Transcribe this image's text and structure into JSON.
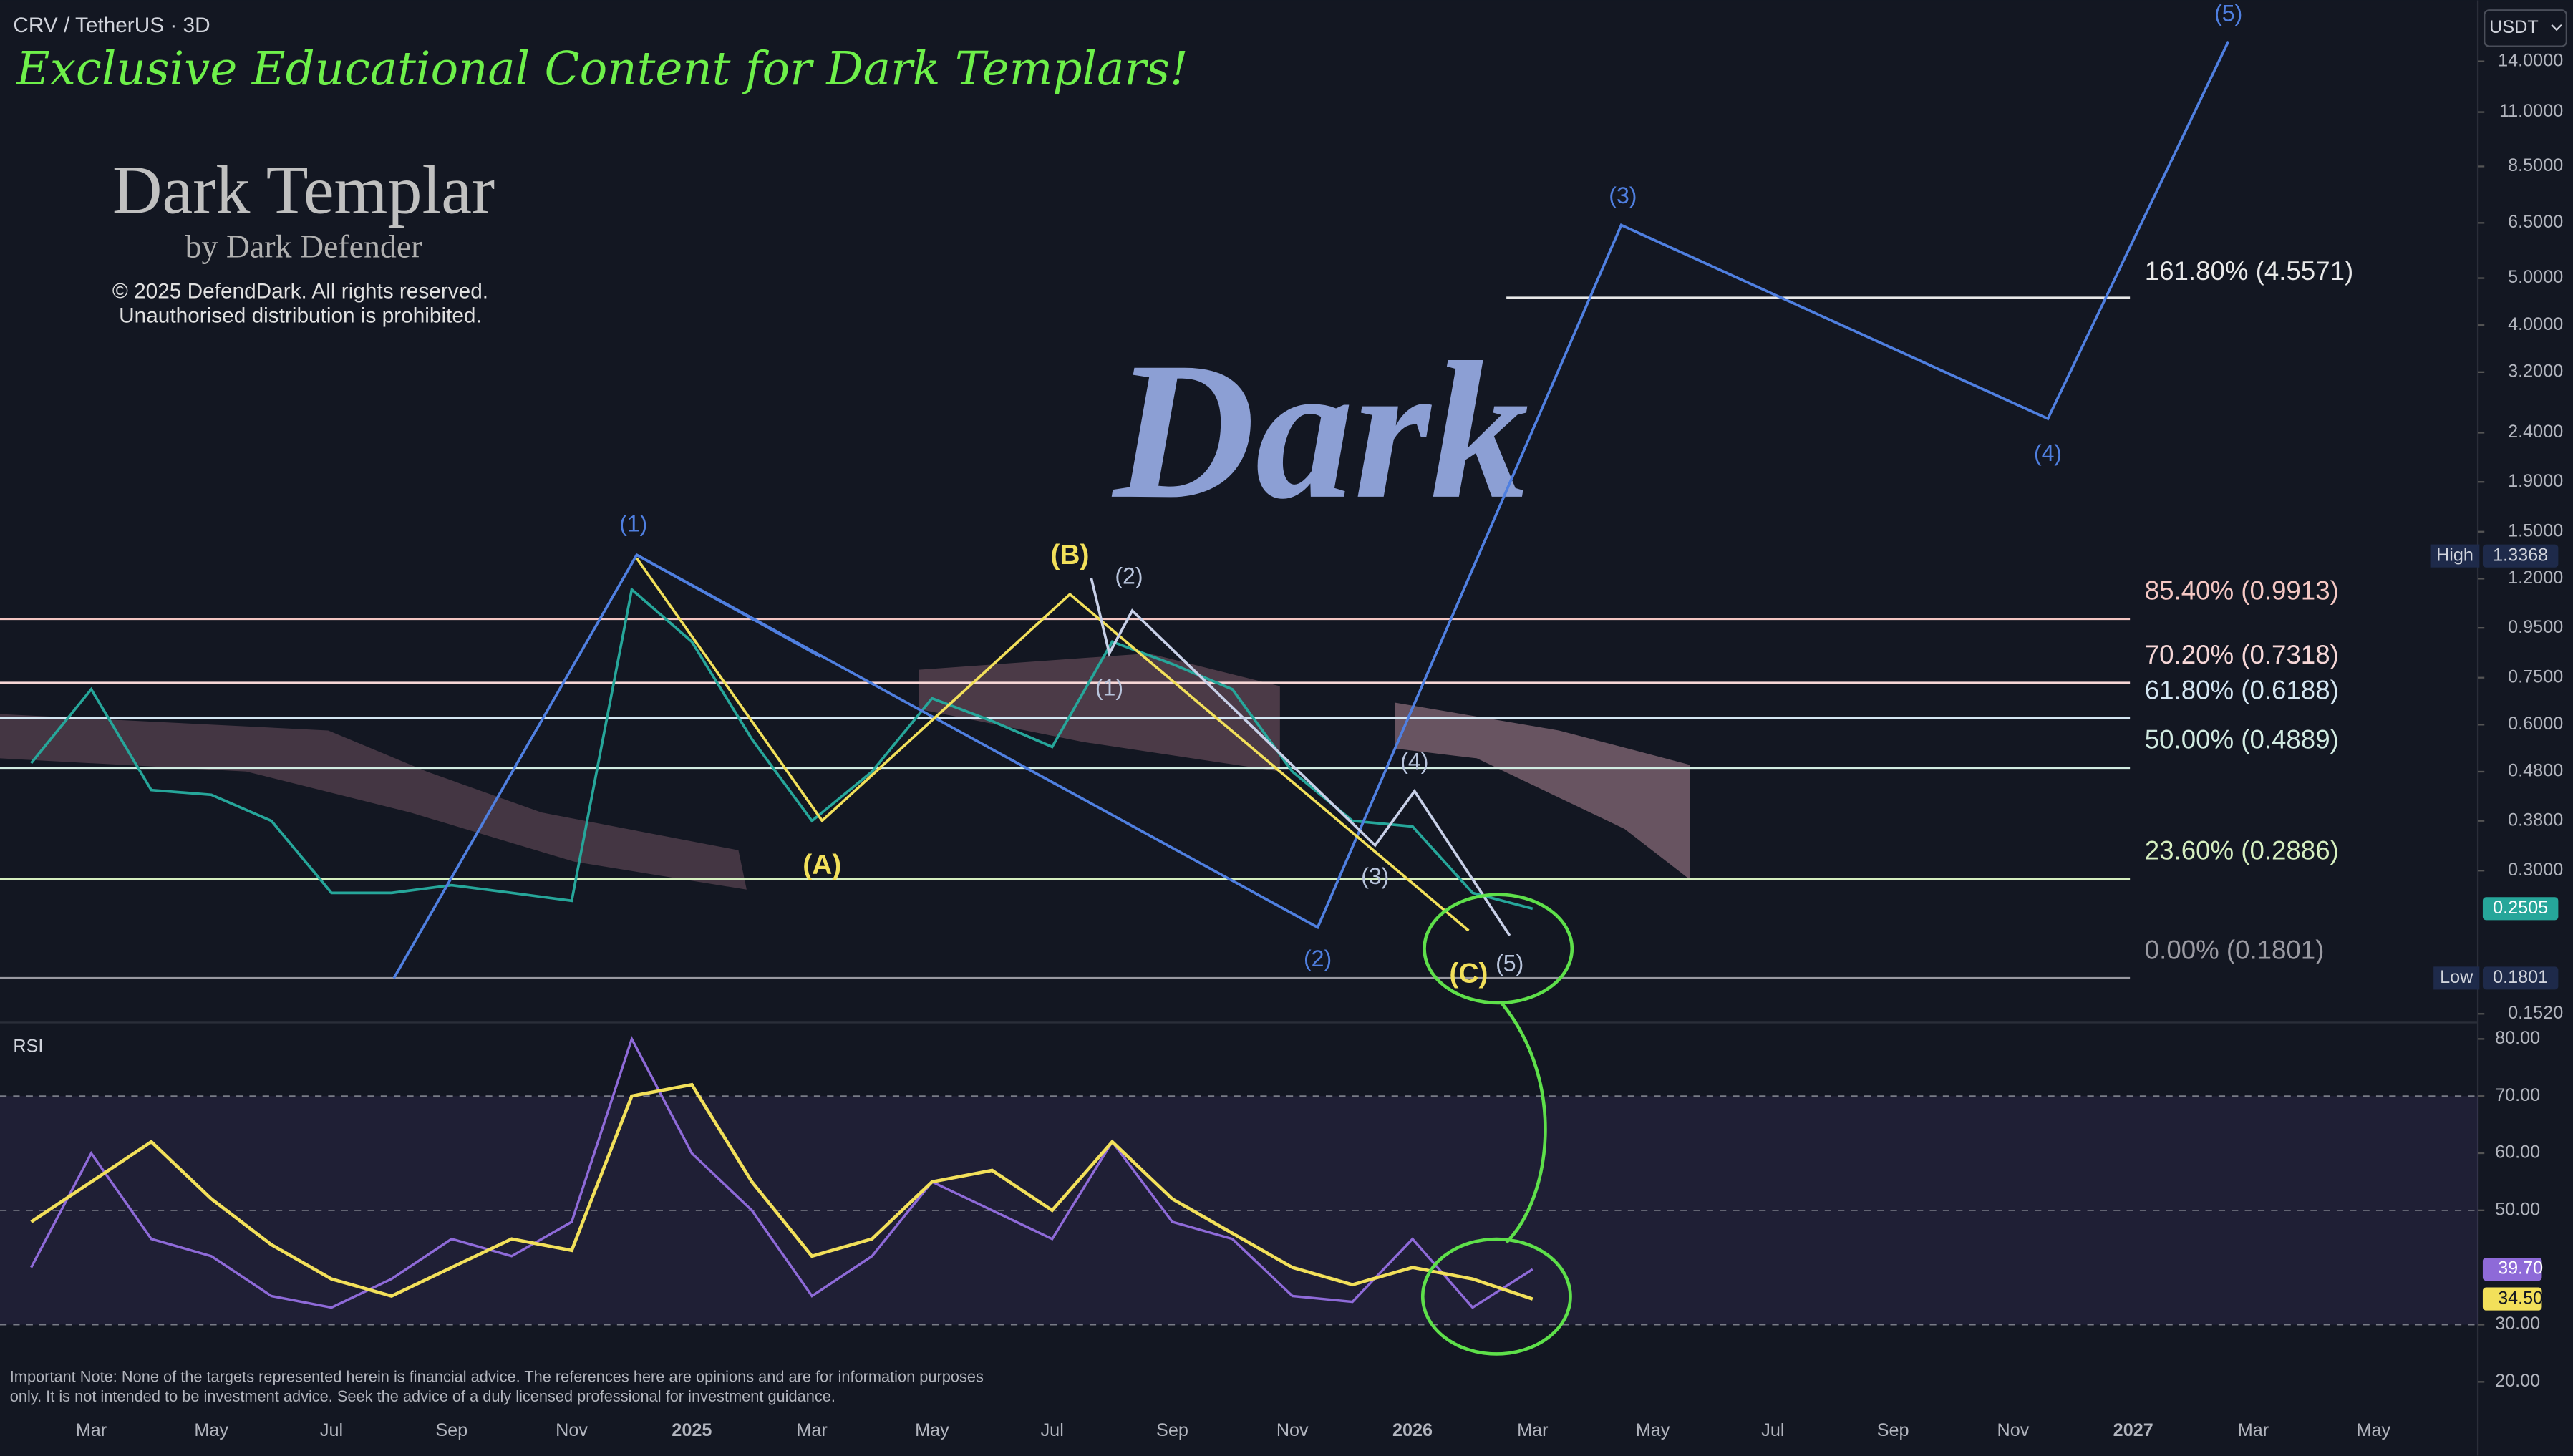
{
  "header": {
    "symbol": "CRV / TetherUS · 3D",
    "currency": "USDT"
  },
  "branding": {
    "banner": "Exclusive Educational Content for Dark Templars!",
    "logo": "Dark Templar",
    "byline": "by Dark Defender",
    "copyright": "© 2025 DefendDark. All rights reserved.",
    "notice": "Unauthorised distribution is prohibited.",
    "watermark": "Dark"
  },
  "note": "Important Note: None of the targets represented herein is financial advice. The references here are opinions and are for information purposes only. It is not intended to be investment advice. Seek the advice of a duly licensed professional for investment guidance.",
  "chart_data": [
    {
      "type": "line",
      "log_scale": true,
      "color": "#26a69a",
      "categories": [
        null,
        "Mar",
        null,
        "May",
        null,
        "Jul",
        null,
        "Sep",
        null,
        "Nov",
        null,
        "2025",
        null,
        "Mar",
        null,
        "May",
        null,
        "Jul",
        null,
        "Sep",
        null,
        "Nov",
        null,
        "2026",
        null,
        "Mar",
        null,
        "May",
        null,
        "Jul",
        null,
        "Sep",
        null,
        "Nov",
        null,
        "2027",
        null,
        "Mar",
        null,
        "May"
      ],
      "values": [
        0.5,
        0.71,
        0.44,
        0.43,
        0.38,
        0.27,
        0.27,
        0.28,
        0.27,
        0.26,
        1.14,
        0.89,
        0.56,
        0.38,
        0.48,
        0.68,
        0.61,
        0.54,
        0.89,
        0.8,
        0.71,
        0.48,
        0.38,
        0.37,
        0.27,
        0.2505,
        null,
        null,
        null,
        null,
        null,
        null,
        null,
        null,
        null,
        null,
        null,
        null,
        null,
        null
      ],
      "ylim": [
        0.147,
        18.7
      ],
      "yticks": [
        {
          "value": 14,
          "label": "14.0000"
        },
        {
          "value": 11,
          "label": "11.0000"
        },
        {
          "value": 8.5,
          "label": "8.5000"
        },
        {
          "value": 6.5,
          "label": "6.5000"
        },
        {
          "value": 5,
          "label": "5.0000"
        },
        {
          "value": 4,
          "label": "4.0000"
        },
        {
          "value": 3.2,
          "label": "3.2000"
        },
        {
          "value": 2.4,
          "label": "2.4000"
        },
        {
          "value": 1.9,
          "label": "1.9000"
        },
        {
          "value": 1.5,
          "label": "1.5000"
        },
        {
          "value": 1.2,
          "label": "1.2000"
        },
        {
          "value": 0.95,
          "label": "0.9500"
        },
        {
          "value": 0.75,
          "label": "0.7500"
        },
        {
          "value": 0.6,
          "label": "0.6000"
        },
        {
          "value": 0.48,
          "label": "0.4800"
        },
        {
          "value": 0.38,
          "label": "0.3800"
        },
        {
          "value": 0.3,
          "label": "0.3000"
        },
        {
          "value": 0.152,
          "label": "0.1520"
        }
      ],
      "levels": [
        {
          "value": 4.5571,
          "label": "161.80% (4.5571)",
          "color": "#e8e8e8"
        },
        {
          "value": 0.9913,
          "label": "85.40% (0.9913)",
          "color": "#f4c7c3"
        },
        {
          "value": 0.7318,
          "label": "70.20% (0.7318)",
          "color": "#f6d6d6"
        },
        {
          "value": 0.6188,
          "label": "61.80% (0.6188)",
          "color": "#d4e6f2"
        },
        {
          "value": 0.4889,
          "label": "50.00% (0.4889)",
          "color": "#d2ece2"
        },
        {
          "value": 0.2886,
          "label": "23.60% (0.2886)",
          "color": "#d6efc0"
        },
        {
          "value": 0.1801,
          "label": "0.00% (0.1801)",
          "color": "#9a9aa2"
        }
      ],
      "high": {
        "label": "High",
        "value": 1.3368
      },
      "low": {
        "label": "Low",
        "value": 0.1801
      },
      "annotations": [
        {
          "text": "(1)",
          "color": "#4f7fe0"
        },
        {
          "text": "(2)",
          "color": "#4f7fe0"
        },
        {
          "text": "(3)",
          "color": "#4f7fe0"
        },
        {
          "text": "(4)",
          "color": "#4f7fe0"
        },
        {
          "text": "(5)",
          "color": "#4f7fe0"
        },
        {
          "text": "(A)",
          "color": "#f2e05a"
        },
        {
          "text": "(B)",
          "color": "#f2e05a"
        },
        {
          "text": "(C)",
          "color": "#f2e05a"
        },
        {
          "text": "(1)",
          "color": "#b8c4dc"
        },
        {
          "text": "(2)",
          "color": "#b8c4dc"
        },
        {
          "text": "(3)",
          "color": "#b8c4dc"
        },
        {
          "text": "(4)",
          "color": "#b8c4dc"
        },
        {
          "text": "(5)",
          "color": "#b8c4dc"
        }
      ]
    },
    {
      "type": "line",
      "title": "RSI",
      "ylim": [
        15.4,
        82.3
      ],
      "yticks": [
        {
          "value": 80,
          "label": "80.00"
        },
        {
          "value": 70,
          "label": "70.00"
        },
        {
          "value": 60,
          "label": "60.00"
        },
        {
          "value": 50,
          "label": "50.00"
        },
        {
          "value": 30,
          "label": "30.00"
        },
        {
          "value": 20,
          "label": "20.00"
        }
      ],
      "band": [
        30,
        70
      ],
      "dashed_levels": [
        70,
        50,
        30
      ],
      "series": [
        {
          "color": "#8e6ad8",
          "values": [
            40,
            60,
            45,
            42,
            35,
            33,
            38,
            45,
            42,
            48,
            80,
            60,
            50,
            35,
            42,
            55,
            50,
            45,
            62,
            48,
            45,
            35,
            34,
            45,
            33,
            39.7,
            null,
            null,
            null,
            null,
            null,
            null,
            null,
            null,
            null,
            null,
            null,
            null,
            null,
            null
          ],
          "value_labels": [
            null,
            null,
            null,
            null,
            null,
            null,
            null,
            null,
            null,
            null,
            null,
            null,
            null,
            null,
            null,
            null,
            null,
            null,
            null,
            null,
            null,
            null,
            null,
            null,
            null,
            "39.70",
            null,
            null,
            null,
            null,
            null,
            null,
            null,
            null,
            null,
            null,
            null,
            null,
            null,
            null
          ]
        },
        {
          "color": "#f2e05a",
          "values": [
            48,
            55,
            62,
            52,
            44,
            38,
            35,
            40,
            45,
            43,
            70,
            72,
            55,
            42,
            45,
            55,
            57,
            50,
            62,
            52,
            46,
            40,
            37,
            40,
            38,
            34.5,
            null,
            null,
            null,
            null,
            null,
            null,
            null,
            null,
            null,
            null,
            null,
            null,
            null,
            null
          ],
          "value_labels": [
            null,
            null,
            null,
            null,
            null,
            null,
            null,
            null,
            null,
            null,
            null,
            null,
            null,
            null,
            null,
            null,
            null,
            null,
            null,
            null,
            null,
            null,
            null,
            null,
            null,
            "34.50",
            null,
            null,
            null,
            null,
            null,
            null,
            null,
            null,
            null,
            null,
            null,
            null,
            null,
            null
          ]
        }
      ]
    }
  ]
}
